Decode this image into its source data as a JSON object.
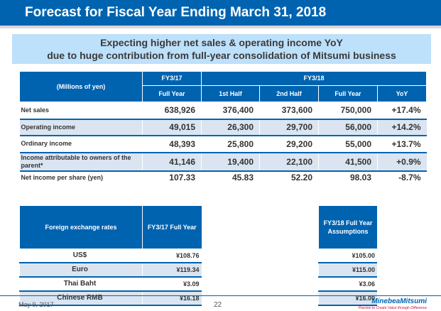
{
  "title": "Forecast for Fiscal Year Ending March 31, 2018",
  "banner": {
    "line1": "Expecting higher net sales & operating income YoY",
    "line2": "due to huge contribution from full-year consolidation of Mitsumi business"
  },
  "main_table": {
    "unit": "(Millions of yen)",
    "fy17": "FY3/17",
    "fy18": "FY3/18",
    "cols": [
      "Full Year",
      "1st Half",
      "2nd Half",
      "Full Year",
      "YoY"
    ],
    "rows": [
      {
        "label": "Net sales",
        "values": [
          "638,926",
          "376,400",
          "373,600",
          "750,000",
          "+17.4%"
        ]
      },
      {
        "label": "Operating income",
        "values": [
          "49,015",
          "26,300",
          "29,700",
          "56,000",
          "+14.2%"
        ]
      },
      {
        "label": "Ordinary income",
        "values": [
          "48,393",
          "25,800",
          "29,200",
          "55,000",
          "+13.7%"
        ]
      },
      {
        "label": "Income attributable to owners of the parent*",
        "values": [
          "41,146",
          "19,400",
          "22,100",
          "41,500",
          "+0.9%"
        ]
      },
      {
        "label": "Net income per share (yen)",
        "values": [
          "107.33",
          "45.83",
          "52.20",
          "98.03",
          "-8.7%"
        ]
      }
    ]
  },
  "fx_table": {
    "header_label": "Foreign exchange rates",
    "header_fy17": "FY3/17 Full Year",
    "header_fy18": "FY3/18 Full Year Assumptions",
    "rows": [
      {
        "label": "US$",
        "fy17": "¥108.76",
        "fy18": "¥105.00"
      },
      {
        "label": "Euro",
        "fy17": "¥119.34",
        "fy18": "¥115.00"
      },
      {
        "label": "Thai Baht",
        "fy17": "¥3.09",
        "fy18": "¥3.06"
      },
      {
        "label": "Chinese RMB",
        "fy17": "¥16.18",
        "fy18": "¥16.00"
      }
    ]
  },
  "footer": {
    "date": "May 9, 2017",
    "page": "22",
    "logo": "MinebeaMitsumi",
    "tagline": "Passion to Create Value through Difference"
  },
  "colors": {
    "primary": "#0063b0",
    "banner": "#bde0fb",
    "row_shade": "#dbe5f1"
  }
}
